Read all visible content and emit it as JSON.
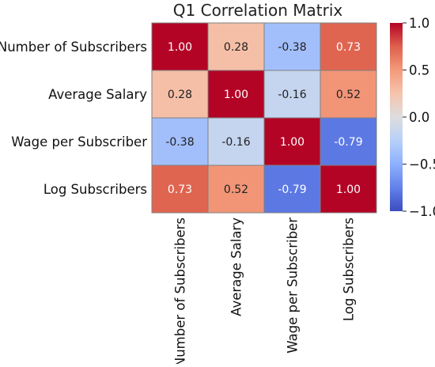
{
  "chart_data": {
    "type": "heatmap",
    "title": "Q1 Correlation Matrix",
    "rows": [
      "Number of Subscribers",
      "Average Salary",
      "Wage per Subscriber",
      "Log Subscribers"
    ],
    "columns": [
      "Number of Subscribers",
      "Average Salary",
      "Wage per Subscriber",
      "Log Subscribers"
    ],
    "values": [
      [
        1.0,
        0.28,
        -0.38,
        0.73
      ],
      [
        0.28,
        1.0,
        -0.16,
        0.52
      ],
      [
        -0.38,
        -0.16,
        1.0,
        -0.79
      ],
      [
        0.73,
        0.52,
        -0.79,
        1.0
      ]
    ],
    "cell_labels": [
      [
        "1.00",
        "0.28",
        "-0.38",
        "0.73"
      ],
      [
        "0.28",
        "1.00",
        "-0.16",
        "0.52"
      ],
      [
        "-0.38",
        "-0.16",
        "1.00",
        "-0.79"
      ],
      [
        "0.73",
        "0.52",
        "-0.79",
        "1.00"
      ]
    ],
    "colormap": "coolwarm",
    "vmin": -1.0,
    "vmax": 1.0,
    "colorbar": {
      "ticks": [
        1.0,
        0.5,
        0.0,
        -0.5,
        -1.0
      ],
      "tick_labels": [
        "1.0",
        "0.5",
        "0.0",
        "−0.5",
        "−1.0"
      ]
    },
    "cell_border_color": "#808080"
  }
}
